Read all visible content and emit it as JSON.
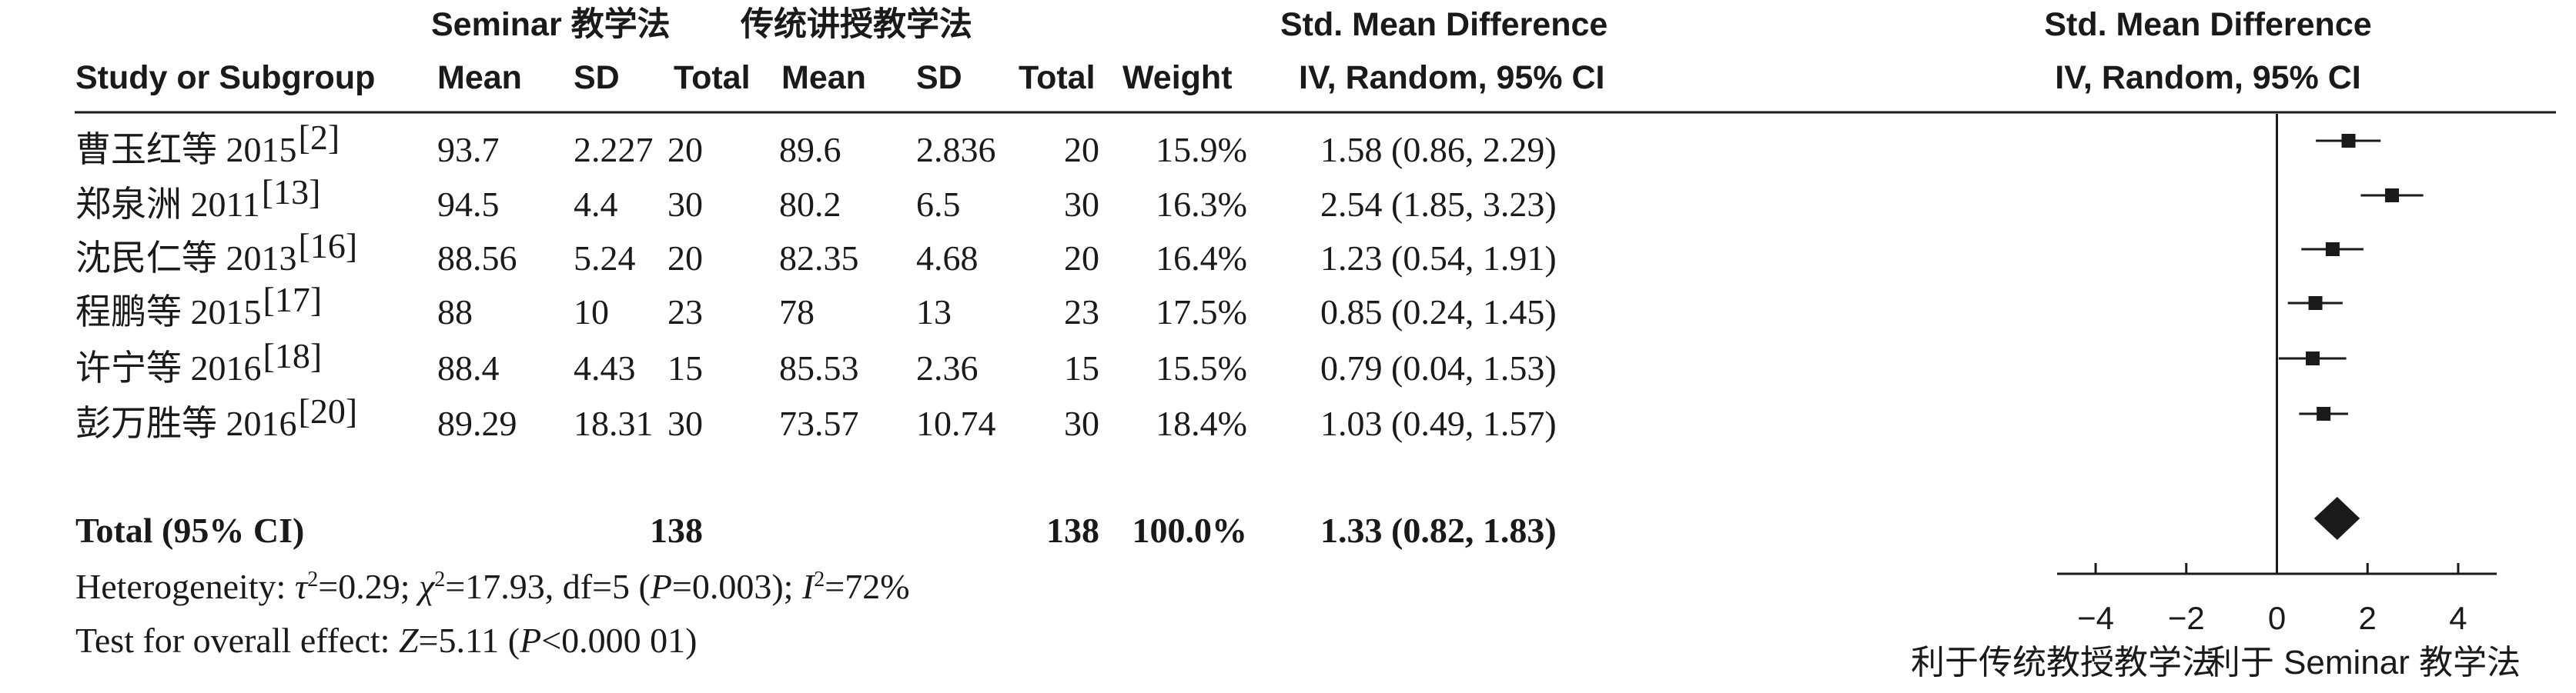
{
  "headers": {
    "exp_group": "Seminar 教学法",
    "ctrl_group": "传统讲授教学法",
    "smd_title": "Std. Mean Difference",
    "smd_method": "IV, Random, 95% CI",
    "plot_title": "Std. Mean Difference",
    "plot_method": "IV, Random, 95% CI",
    "study": "Study or Subgroup",
    "mean_e": "Mean",
    "sd_e": "SD",
    "total_e": "Total",
    "mean_c": "Mean",
    "sd_c": "SD",
    "total_c": "Total",
    "weight": "Weight"
  },
  "studies": [
    {
      "name": "曹玉红等 2015",
      "ref": "[2]",
      "mean_e": "93.7",
      "sd_e": "2.227",
      "n_e": "20",
      "mean_c": "89.6",
      "sd_c": "2.836",
      "n_c": "20",
      "weight": "15.9%",
      "ci_text": "1.58 (0.86, 2.29)"
    },
    {
      "name": "郑泉洲 2011",
      "ref": "[13]",
      "mean_e": "94.5",
      "sd_e": "4.4",
      "n_e": "30",
      "mean_c": "80.2",
      "sd_c": "6.5",
      "n_c": "30",
      "weight": "16.3%",
      "ci_text": "2.54 (1.85, 3.23)"
    },
    {
      "name": "沈民仁等 2013",
      "ref": "[16]",
      "mean_e": "88.56",
      "sd_e": "5.24",
      "n_e": "20",
      "mean_c": "82.35",
      "sd_c": "4.68",
      "n_c": "20",
      "weight": "16.4%",
      "ci_text": "1.23 (0.54, 1.91)"
    },
    {
      "name": "程鹏等 2015",
      "ref": "[17]",
      "mean_e": "88",
      "sd_e": "10",
      "n_e": "23",
      "mean_c": "78",
      "sd_c": "13",
      "n_c": "23",
      "weight": "17.5%",
      "ci_text": "0.85 (0.24, 1.45)"
    },
    {
      "name": "许宁等 2016",
      "ref": "[18]",
      "mean_e": "88.4",
      "sd_e": "4.43",
      "n_e": "15",
      "mean_c": "85.53",
      "sd_c": "2.36",
      "n_c": "15",
      "weight": "15.5%",
      "ci_text": "0.79 (0.04, 1.53)"
    },
    {
      "name": "彭万胜等 2016",
      "ref": "[20]",
      "mean_e": "89.29",
      "sd_e": "18.31",
      "n_e": "30",
      "mean_c": "73.57",
      "sd_c": "10.74",
      "n_c": "30",
      "weight": "18.4%",
      "ci_text": "1.03 (0.49, 1.57)"
    }
  ],
  "total": {
    "label": "Total (95% CI)",
    "n_e": "138",
    "n_c": "138",
    "weight": "100.0%",
    "ci_text": "1.33 (0.82, 1.83)"
  },
  "footer": {
    "heterogeneity": "Heterogeneity: τ²=0.29; χ²=17.93, df=5 (P=0.003); I²=72%",
    "overall": "Test for overall effect: Z=5.11 (P<0.000 01)"
  },
  "axis": {
    "ticks": [
      -4,
      -2,
      0,
      2,
      4
    ],
    "tick_labels": [
      "−4",
      "−2",
      "0",
      "2",
      "4"
    ],
    "left_label": "利于传统教授教学法",
    "right_label": "利于 Seminar 教学法"
  },
  "chart_data": {
    "type": "forest",
    "xlim": [
      -4.85,
      4.85
    ],
    "null_line": 0,
    "series": [
      {
        "study": "曹玉红等 2015",
        "smd": 1.58,
        "lower": 0.86,
        "upper": 2.29,
        "weight": 15.9
      },
      {
        "study": "郑泉洲 2011",
        "smd": 2.54,
        "lower": 1.85,
        "upper": 3.23,
        "weight": 16.3
      },
      {
        "study": "沈民仁等 2013",
        "smd": 1.23,
        "lower": 0.54,
        "upper": 1.91,
        "weight": 16.4
      },
      {
        "study": "程鹏等 2015",
        "smd": 0.85,
        "lower": 0.24,
        "upper": 1.45,
        "weight": 17.5
      },
      {
        "study": "许宁等 2016",
        "smd": 0.79,
        "lower": 0.04,
        "upper": 1.53,
        "weight": 15.5
      },
      {
        "study": "彭万胜等 2016",
        "smd": 1.03,
        "lower": 0.49,
        "upper": 1.57,
        "weight": 18.4
      }
    ],
    "pooled": {
      "smd": 1.33,
      "lower": 0.82,
      "upper": 1.83
    }
  }
}
